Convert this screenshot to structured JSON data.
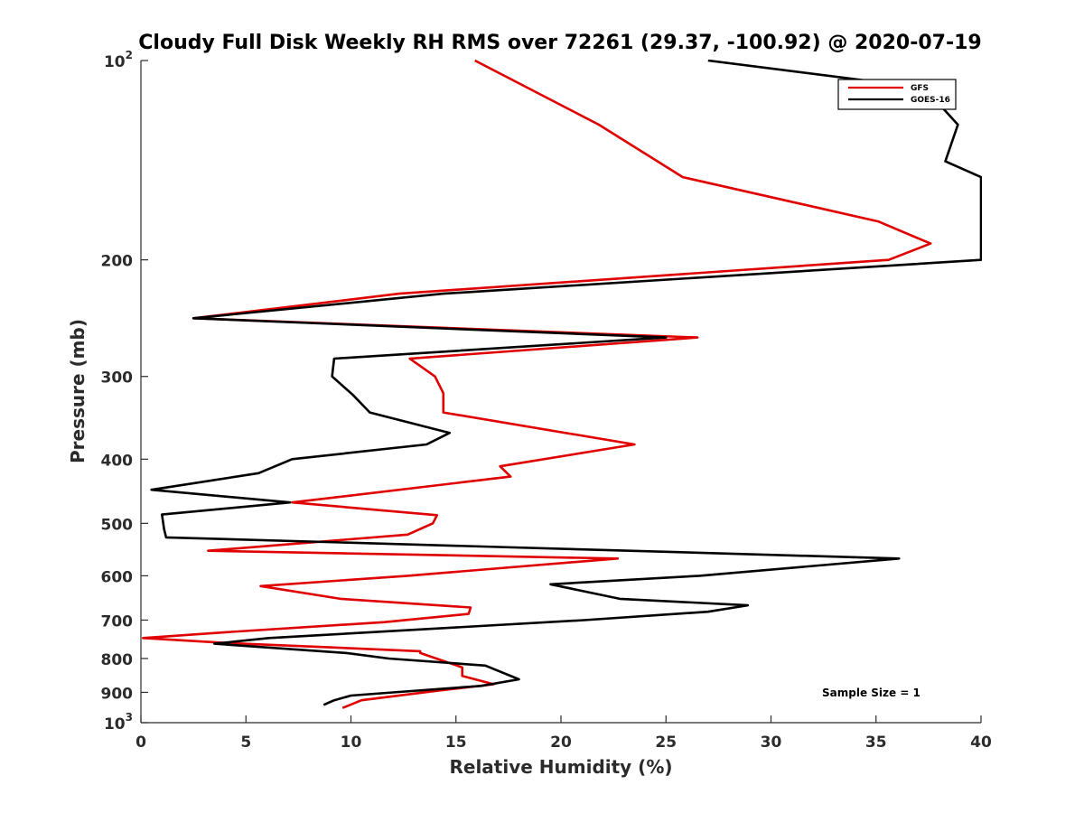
{
  "chart_data": {
    "type": "line",
    "title": "Cloudy Full Disk Weekly RH RMS over 72261 (29.37, -100.92) @ 2020-07-19",
    "xlabel": "Relative Humidity (%)",
    "ylabel": "Pressure (mb)",
    "xlim": [
      0,
      40
    ],
    "ylim": [
      100,
      1000
    ],
    "y_scale": "log",
    "y_reversed": true,
    "grid": false,
    "legend_position": "top-right",
    "x_ticks": [
      0,
      5,
      10,
      15,
      20,
      25,
      30,
      35,
      40
    ],
    "x_tick_labels": [
      "0",
      "5",
      "10",
      "15",
      "20",
      "25",
      "30",
      "35",
      "40"
    ],
    "y_ticks": [
      100,
      200,
      300,
      400,
      500,
      600,
      700,
      800,
      900,
      1000
    ],
    "y_tick_labels": [
      {
        "base": "10",
        "exp": "2"
      },
      {
        "base": "200"
      },
      {
        "base": "300"
      },
      {
        "base": "400"
      },
      {
        "base": "500"
      },
      {
        "base": "600"
      },
      {
        "base": "700"
      },
      {
        "base": "800"
      },
      {
        "base": "900"
      },
      {
        "base": "10",
        "exp": "3"
      }
    ],
    "annotation": "Sample Size = 1",
    "series": [
      {
        "name": "GFS",
        "color": "#e00000",
        "points": [
          [
            15.9,
            100
          ],
          [
            21.8,
            125
          ],
          [
            25.8,
            150
          ],
          [
            35.1,
            175
          ],
          [
            37.6,
            189
          ],
          [
            35.6,
            200
          ],
          [
            12.3,
            225
          ],
          [
            2.5,
            245
          ],
          [
            26.5,
            262
          ],
          [
            12.8,
            282
          ],
          [
            14.0,
            300
          ],
          [
            14.4,
            318
          ],
          [
            14.4,
            340
          ],
          [
            23.5,
            380
          ],
          [
            17.1,
            410
          ],
          [
            17.6,
            425
          ],
          [
            7.2,
            465
          ],
          [
            14.1,
            486
          ],
          [
            13.9,
            500
          ],
          [
            12.7,
            520
          ],
          [
            3.2,
            550
          ],
          [
            22.7,
            565
          ],
          [
            12.7,
            600
          ],
          [
            5.7,
            622
          ],
          [
            9.5,
            650
          ],
          [
            15.7,
            670
          ],
          [
            15.6,
            685
          ],
          [
            11.6,
            705
          ],
          [
            4.1,
            730
          ],
          [
            0.1,
            745
          ],
          [
            4.1,
            758
          ],
          [
            13.3,
            780
          ],
          [
            13.3,
            785
          ],
          [
            15.3,
            825
          ],
          [
            15.3,
            850
          ],
          [
            16.8,
            875
          ],
          [
            14.1,
            895
          ],
          [
            10.5,
            925
          ],
          [
            9.6,
            950
          ]
        ]
      },
      {
        "name": "GOES-16",
        "color": "#000000",
        "points": [
          [
            27.0,
            100
          ],
          [
            37.3,
            110
          ],
          [
            38.9,
            125
          ],
          [
            38.3,
            142
          ],
          [
            40.0,
            150
          ],
          [
            40.0,
            200
          ],
          [
            14.4,
            225
          ],
          [
            2.5,
            245
          ],
          [
            25.0,
            262
          ],
          [
            9.2,
            282
          ],
          [
            9.1,
            300
          ],
          [
            10.1,
            320
          ],
          [
            10.9,
            340
          ],
          [
            14.7,
            365
          ],
          [
            13.6,
            380
          ],
          [
            7.2,
            400
          ],
          [
            5.6,
            420
          ],
          [
            0.5,
            445
          ],
          [
            7.1,
            465
          ],
          [
            1.0,
            485
          ],
          [
            1.1,
            510
          ],
          [
            1.2,
            525
          ],
          [
            36.1,
            565
          ],
          [
            26.6,
            600
          ],
          [
            19.5,
            618
          ],
          [
            22.8,
            650
          ],
          [
            28.9,
            665
          ],
          [
            27.0,
            680
          ],
          [
            21.1,
            700
          ],
          [
            6.1,
            745
          ],
          [
            3.5,
            760
          ],
          [
            9.8,
            785
          ],
          [
            11.8,
            800
          ],
          [
            16.4,
            820
          ],
          [
            18.0,
            860
          ],
          [
            16.2,
            880
          ],
          [
            12.0,
            900
          ],
          [
            10.0,
            910
          ],
          [
            9.2,
            925
          ],
          [
            8.7,
            940
          ]
        ]
      }
    ]
  }
}
